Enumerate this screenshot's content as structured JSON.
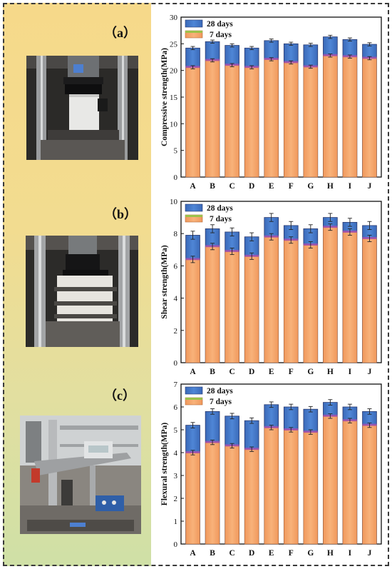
{
  "panels": [
    {
      "label": "（a）"
    },
    {
      "label": "（b）"
    },
    {
      "label": "（c）"
    }
  ],
  "colors": {
    "seven_day": "#f4a46a",
    "twentyeight_day": "#3f74c6",
    "bar_edge": "#2a3a70"
  },
  "chart_data": [
    {
      "type": "bar",
      "categories": [
        "A",
        "B",
        "C",
        "D",
        "E",
        "F",
        "G",
        "H",
        "I",
        "J"
      ],
      "ylabel": "Compressive strength(MPa)",
      "ylim": [
        0,
        30
      ],
      "yticks": [
        0,
        5,
        10,
        15,
        20,
        25,
        30
      ],
      "legend_position": "top-left",
      "series": [
        {
          "name": "28 days",
          "values": [
            24.2,
            25.4,
            24.7,
            24.2,
            25.6,
            25.0,
            24.8,
            26.3,
            25.8,
            24.9
          ],
          "errors": [
            0.3,
            0.3,
            0.3,
            0.3,
            0.3,
            0.3,
            0.3,
            0.3,
            0.3,
            0.3
          ]
        },
        {
          "name": "7 days",
          "values": [
            20.6,
            21.9,
            21.0,
            20.6,
            22.1,
            21.5,
            20.7,
            22.8,
            22.6,
            22.3
          ],
          "errors": [
            0.3,
            0.3,
            0.3,
            0.3,
            0.3,
            0.3,
            0.3,
            0.3,
            0.3,
            0.3
          ]
        }
      ]
    },
    {
      "type": "bar",
      "categories": [
        "A",
        "B",
        "C",
        "D",
        "E",
        "F",
        "G",
        "H",
        "I",
        "J"
      ],
      "ylabel": "Shear strength(MPa)",
      "ylim": [
        0,
        10
      ],
      "yticks": [
        0,
        2,
        4,
        6,
        8,
        10
      ],
      "legend_position": "top-left",
      "series": [
        {
          "name": "28 days",
          "values": [
            7.9,
            8.3,
            8.1,
            7.8,
            9.0,
            8.5,
            8.3,
            9.0,
            8.7,
            8.5
          ],
          "errors": [
            0.25,
            0.25,
            0.25,
            0.25,
            0.25,
            0.25,
            0.25,
            0.25,
            0.25,
            0.25
          ]
        },
        {
          "name": "7 days",
          "values": [
            6.4,
            7.2,
            6.9,
            6.6,
            7.8,
            7.6,
            7.3,
            8.4,
            8.1,
            7.7
          ],
          "errors": [
            0.2,
            0.2,
            0.2,
            0.2,
            0.2,
            0.2,
            0.2,
            0.2,
            0.2,
            0.2
          ]
        }
      ]
    },
    {
      "type": "bar",
      "categories": [
        "A",
        "B",
        "C",
        "D",
        "E",
        "F",
        "G",
        "H",
        "I",
        "J"
      ],
      "ylabel": "Flexural strength(MPa)",
      "ylim": [
        0,
        7
      ],
      "yticks": [
        0,
        1,
        2,
        3,
        4,
        5,
        6,
        7
      ],
      "legend_position": "top-left",
      "series": [
        {
          "name": "28 days",
          "values": [
            5.2,
            5.8,
            5.6,
            5.4,
            6.1,
            6.0,
            5.9,
            6.2,
            6.0,
            5.8
          ],
          "errors": [
            0.12,
            0.12,
            0.12,
            0.12,
            0.12,
            0.12,
            0.12,
            0.12,
            0.12,
            0.12
          ]
        },
        {
          "name": "7 days",
          "values": [
            4.0,
            4.45,
            4.3,
            4.15,
            5.1,
            5.0,
            4.9,
            5.6,
            5.4,
            5.2
          ],
          "errors": [
            0.1,
            0.1,
            0.1,
            0.1,
            0.1,
            0.1,
            0.1,
            0.1,
            0.1,
            0.1
          ]
        }
      ]
    }
  ]
}
